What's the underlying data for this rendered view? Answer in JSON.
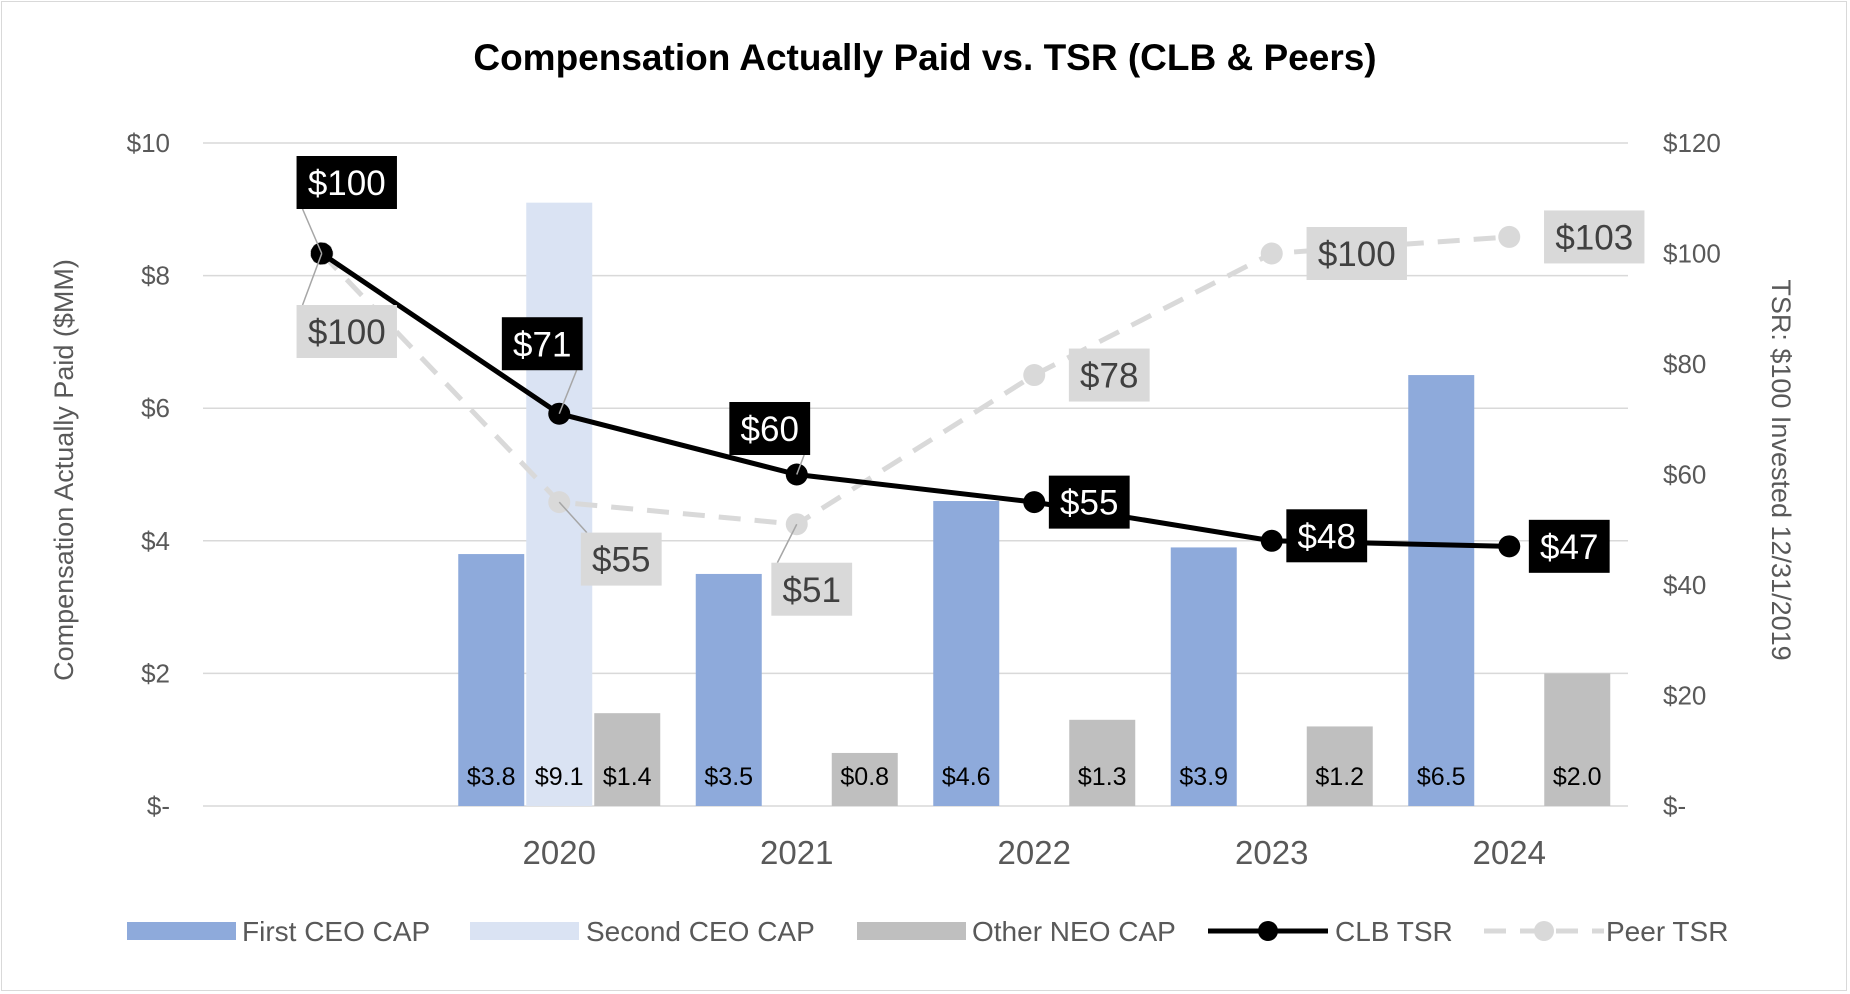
{
  "chart_data": {
    "type": "bar",
    "title": "Compensation Actually Paid vs. TSR (CLB & Peers)",
    "categories": [
      "2020",
      "2021",
      "2022",
      "2023",
      "2024"
    ],
    "ylabel": "Compensation Actually Paid ($MM)",
    "y2label": "TSR: $100 Invested 12/31/2019",
    "ylim": [
      0,
      10
    ],
    "y2lim": [
      0,
      120
    ],
    "yticks": [
      {
        "value": 0,
        "label": "$-"
      },
      {
        "value": 2,
        "label": "$2"
      },
      {
        "value": 4,
        "label": "$4"
      },
      {
        "value": 6,
        "label": "$6"
      },
      {
        "value": 8,
        "label": "$8"
      },
      {
        "value": 10,
        "label": "$10"
      }
    ],
    "y2ticks": [
      {
        "value": 0,
        "label": "$-"
      },
      {
        "value": 20,
        "label": "$20"
      },
      {
        "value": 40,
        "label": "$40"
      },
      {
        "value": 60,
        "label": "$60"
      },
      {
        "value": 80,
        "label": "$80"
      },
      {
        "value": 100,
        "label": "$100"
      },
      {
        "value": 120,
        "label": "$120"
      }
    ],
    "bar_series": [
      {
        "name": "First CEO CAP",
        "color": "#8eaadb",
        "values": [
          3.8,
          3.5,
          4.6,
          3.9,
          6.5
        ],
        "labels": [
          "$3.8",
          "$3.5",
          "$4.6",
          "$3.9",
          "$6.5"
        ]
      },
      {
        "name": "Second CEO CAP",
        "color": "#dae3f3",
        "values": [
          9.1,
          null,
          null,
          null,
          null
        ],
        "labels": [
          "$9.1",
          "",
          "",
          "",
          ""
        ]
      },
      {
        "name": "Other NEO CAP",
        "color": "#bfbfbf",
        "values": [
          1.4,
          0.8,
          1.3,
          1.2,
          2.0
        ],
        "labels": [
          "$1.4",
          "$0.8",
          "$1.3",
          "$1.2",
          "$2.0"
        ]
      }
    ],
    "line_series": [
      {
        "name": "CLB TSR",
        "color": "#000000",
        "style": "solid",
        "axis": "right",
        "x": [
          "2019",
          "2020",
          "2021",
          "2022",
          "2023",
          "2024"
        ],
        "values": [
          100,
          71,
          60,
          55,
          48,
          47
        ],
        "labels": [
          "$100",
          "$71",
          "$60",
          "$55",
          "$48",
          "$47"
        ]
      },
      {
        "name": "Peer TSR",
        "color": "#d9d9d9",
        "style": "dashed",
        "axis": "right",
        "x": [
          "2019",
          "2020",
          "2021",
          "2022",
          "2023",
          "2024"
        ],
        "values": [
          100,
          55,
          51,
          78,
          100,
          103
        ],
        "labels": [
          "$100",
          "$55",
          "$51",
          "$78",
          "$100",
          "$103"
        ]
      }
    ],
    "legend": {
      "position": "bottom",
      "items": [
        {
          "name": "First CEO CAP",
          "kind": "bar",
          "color": "#8eaadb"
        },
        {
          "name": "Second CEO CAP",
          "kind": "bar",
          "color": "#dae3f3"
        },
        {
          "name": "Other NEO CAP",
          "kind": "bar",
          "color": "#bfbfbf"
        },
        {
          "name": "CLB TSR",
          "kind": "line",
          "color": "#000000",
          "style": "solid"
        },
        {
          "name": "Peer TSR",
          "kind": "line",
          "color": "#d9d9d9",
          "style": "dashed"
        }
      ]
    },
    "grid": true
  }
}
